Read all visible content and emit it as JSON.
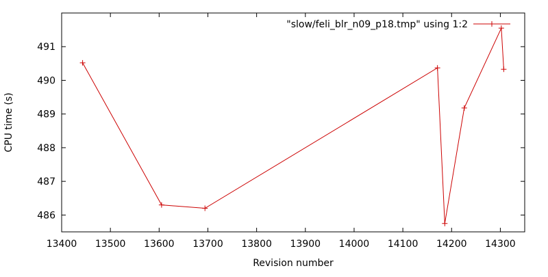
{
  "chart_data": {
    "type": "line",
    "title": "",
    "xlabel": "Revision number",
    "ylabel": "CPU time (s)",
    "xlim": [
      13400,
      14350
    ],
    "ylim": [
      485.5,
      492
    ],
    "xticks": [
      13400,
      13500,
      13600,
      13700,
      13800,
      13900,
      14000,
      14100,
      14200,
      14300
    ],
    "yticks": [
      486,
      487,
      488,
      489,
      490,
      491
    ],
    "grid": false,
    "legend_position": "top-right",
    "series": [
      {
        "name": "\"slow/feli_blr_n09_p18.tmp\" using 1:2",
        "color": "#cc0000",
        "marker": "plus",
        "x": [
          13443,
          13605,
          13694,
          14171,
          14186,
          14226,
          14302,
          14307
        ],
        "y": [
          490.52,
          486.3,
          486.2,
          490.37,
          485.75,
          489.18,
          491.55,
          490.33
        ]
      }
    ]
  }
}
